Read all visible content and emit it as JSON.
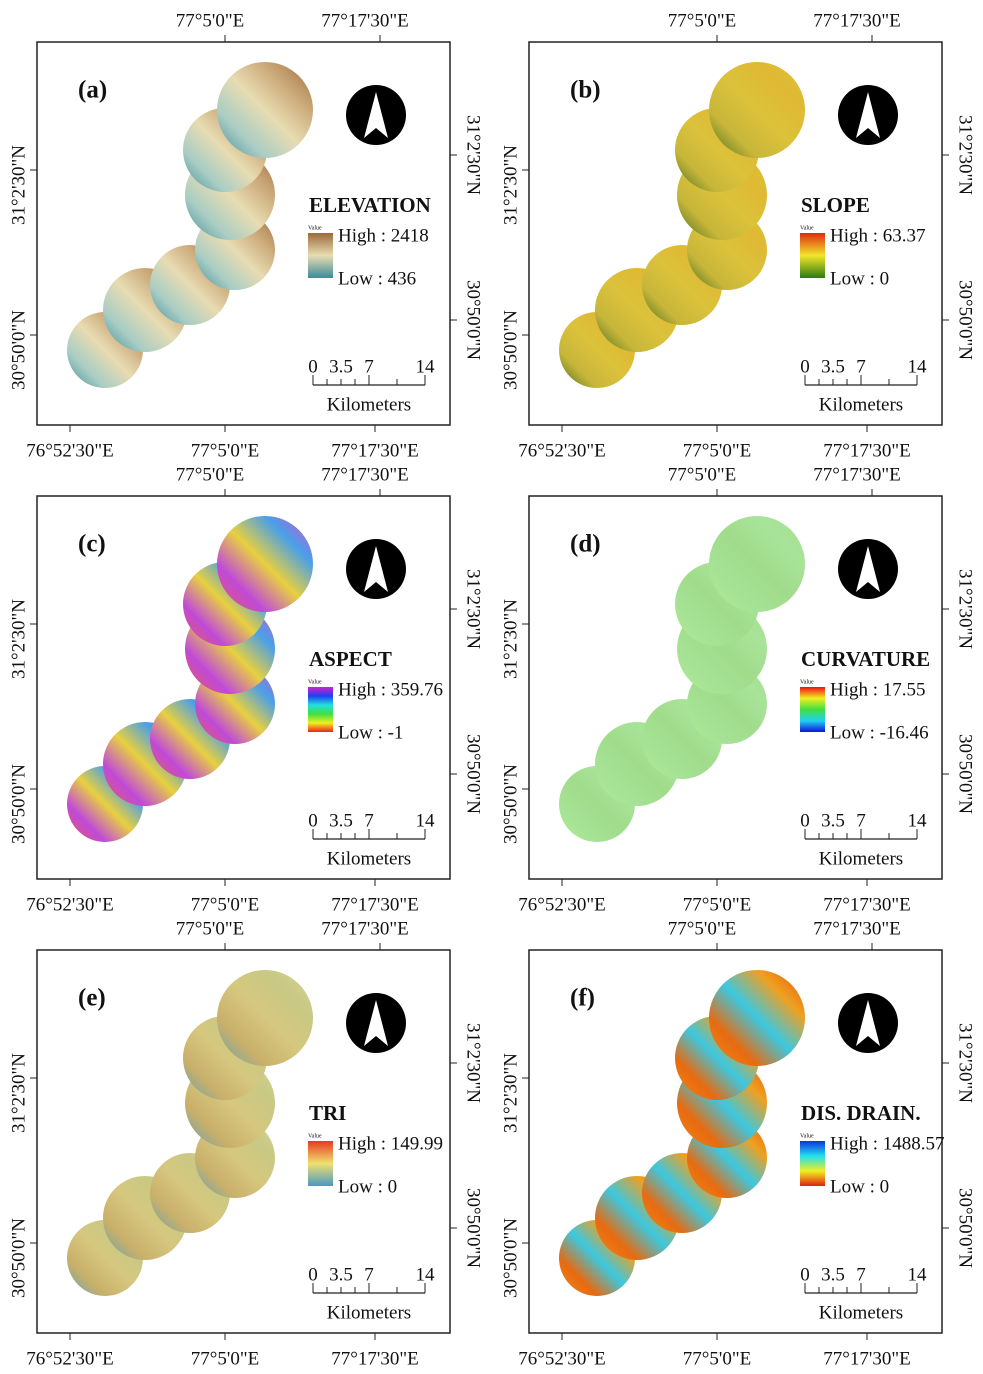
{
  "top_lon": [
    "77°5'0\"E",
    "77°17'30\"E"
  ],
  "bottom_lon": [
    "76°52'30\"E",
    "77°5'0\"E",
    "77°17'30\"E"
  ],
  "lat": [
    "31°2'30\"N",
    "30°50'0\"N"
  ],
  "scale": {
    "ticks": [
      "0",
      "3.5",
      "7",
      "14"
    ],
    "unit": "Kilometers"
  },
  "legend_caption": "Value",
  "panels": [
    {
      "label": "(a)",
      "title": "ELEVATION",
      "high": "High : 2418",
      "low": "Low : 436"
    },
    {
      "label": "(b)",
      "title": "SLOPE",
      "high": "High : 63.37",
      "low": "Low : 0"
    },
    {
      "label": "(c)",
      "title": "ASPECT",
      "high": "High : 359.76",
      "low": "Low : -1"
    },
    {
      "label": "(d)",
      "title": "CURVATURE",
      "high": "High : 17.55",
      "low": "Low : -16.46"
    },
    {
      "label": "(e)",
      "title": "TRI",
      "high": "High : 149.99",
      "low": "Low : 0"
    },
    {
      "label": "(f)",
      "title": "DIS.  DRAIN.",
      "high": "High : 1488.57",
      "low": "Low : 0"
    }
  ]
}
